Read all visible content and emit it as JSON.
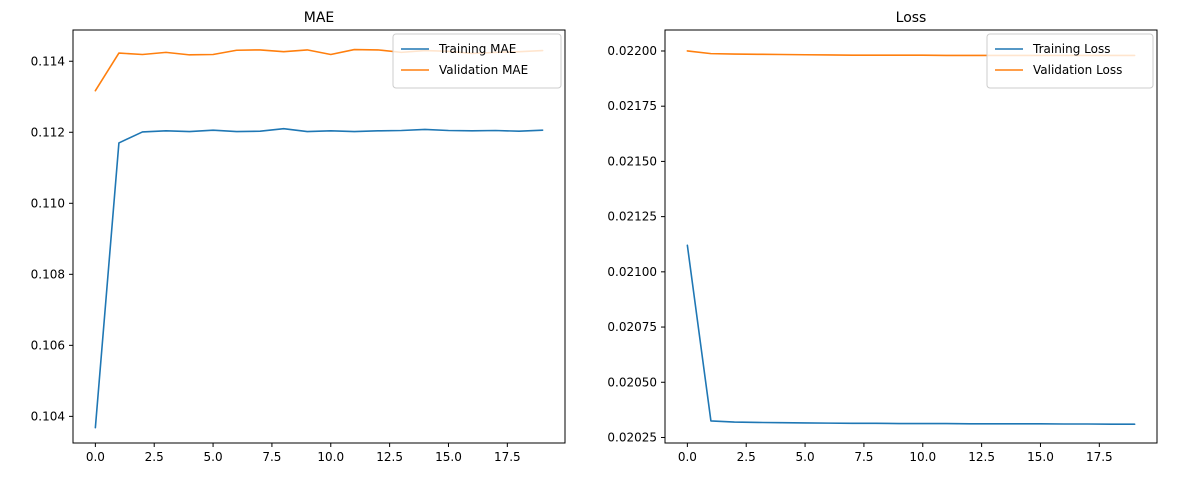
{
  "chart_data": [
    {
      "type": "line",
      "title": "MAE",
      "xlim": [
        -0.95,
        19.95
      ],
      "ylim": [
        0.10325,
        0.11488
      ],
      "xticks": [
        0.0,
        2.5,
        5.0,
        7.5,
        10.0,
        12.5,
        15.0,
        17.5
      ],
      "xtick_labels": [
        "0.0",
        "2.5",
        "5.0",
        "7.5",
        "10.0",
        "12.5",
        "15.0",
        "17.5"
      ],
      "yticks": [
        0.104,
        0.106,
        0.108,
        0.11,
        0.112,
        0.114
      ],
      "ytick_labels": [
        "0.104",
        "0.106",
        "0.108",
        "0.110",
        "0.112",
        "0.114"
      ],
      "x": [
        0,
        1,
        2,
        3,
        4,
        5,
        6,
        7,
        8,
        9,
        10,
        11,
        12,
        13,
        14,
        15,
        16,
        17,
        18,
        19
      ],
      "legend_position": "top-right",
      "grid": false,
      "series": [
        {
          "name": "Training MAE",
          "color": "#1f77b4",
          "values": [
            0.10368,
            0.1117,
            0.11201,
            0.11204,
            0.11202,
            0.11206,
            0.11202,
            0.11203,
            0.1121,
            0.11202,
            0.11204,
            0.11202,
            0.11204,
            0.11205,
            0.11208,
            0.11205,
            0.11204,
            0.11205,
            0.11203,
            0.11206
          ]
        },
        {
          "name": "Validation MAE",
          "color": "#ff7f0e",
          "values": [
            0.11317,
            0.11423,
            0.11419,
            0.11425,
            0.11418,
            0.11419,
            0.11431,
            0.11432,
            0.11427,
            0.11432,
            0.11419,
            0.11433,
            0.11432,
            0.11425,
            0.1143,
            0.11428,
            0.11422,
            0.11425,
            0.11427,
            0.1143
          ]
        }
      ]
    },
    {
      "type": "line",
      "title": "Loss",
      "xlim": [
        -0.95,
        19.95
      ],
      "ylim": [
        0.020225,
        0.022095
      ],
      "xticks": [
        0.0,
        2.5,
        5.0,
        7.5,
        10.0,
        12.5,
        15.0,
        17.5
      ],
      "xtick_labels": [
        "0.0",
        "2.5",
        "5.0",
        "7.5",
        "10.0",
        "12.5",
        "15.0",
        "17.5"
      ],
      "yticks": [
        0.02025,
        0.0205,
        0.02075,
        0.021,
        0.02125,
        0.0215,
        0.02175,
        0.022
      ],
      "ytick_labels": [
        "0.02025",
        "0.02050",
        "0.02075",
        "0.02100",
        "0.02125",
        "0.02150",
        "0.02175",
        "0.02200"
      ],
      "x": [
        0,
        1,
        2,
        3,
        4,
        5,
        6,
        7,
        8,
        9,
        10,
        11,
        12,
        13,
        14,
        15,
        16,
        17,
        18,
        19
      ],
      "legend_position": "top-right",
      "grid": false,
      "series": [
        {
          "name": "Training Loss",
          "color": "#1f77b4",
          "values": [
            0.02112,
            0.020325,
            0.02032,
            0.020318,
            0.020317,
            0.020316,
            0.020315,
            0.020314,
            0.020314,
            0.020313,
            0.020313,
            0.020313,
            0.020312,
            0.020312,
            0.020312,
            0.020312,
            0.020311,
            0.020311,
            0.02031,
            0.02031
          ]
        },
        {
          "name": "Validation Loss",
          "color": "#ff7f0e",
          "values": [
            0.022,
            0.021988,
            0.021986,
            0.021985,
            0.021984,
            0.021983,
            0.021982,
            0.021981,
            0.021981,
            0.021981,
            0.021981,
            0.02198,
            0.02198,
            0.02198,
            0.02198,
            0.02198,
            0.02198,
            0.02198,
            0.02198,
            0.02198
          ]
        }
      ]
    }
  ]
}
